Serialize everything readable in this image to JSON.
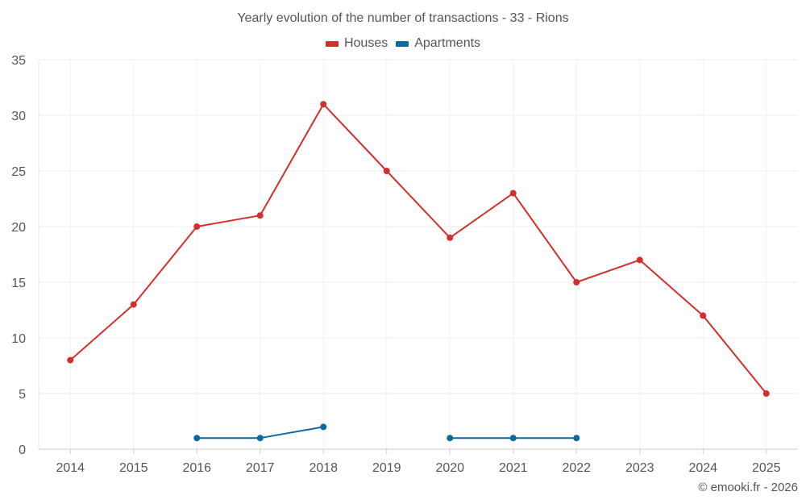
{
  "chart_data": {
    "type": "line",
    "title": "Yearly evolution of the number of transactions - 33 - Rions",
    "xlabel": "",
    "ylabel": "",
    "categories": [
      "2014",
      "2015",
      "2016",
      "2017",
      "2018",
      "2019",
      "2020",
      "2021",
      "2022",
      "2023",
      "2024",
      "2025"
    ],
    "ylim": [
      0,
      35
    ],
    "yticks": [
      0,
      5,
      10,
      15,
      20,
      25,
      30,
      35
    ],
    "grid": true,
    "legend_position": "top-center",
    "series": [
      {
        "name": "Houses",
        "color": "#d32f2f",
        "values": [
          8,
          13,
          20,
          21,
          31,
          25,
          19,
          23,
          15,
          17,
          12,
          5
        ]
      },
      {
        "name": "Apartments",
        "color": "#0a6aa1",
        "values": [
          null,
          null,
          1,
          1,
          2,
          null,
          1,
          1,
          1,
          null,
          null,
          null
        ]
      }
    ]
  },
  "credit": "© emooki.fr - 2026"
}
